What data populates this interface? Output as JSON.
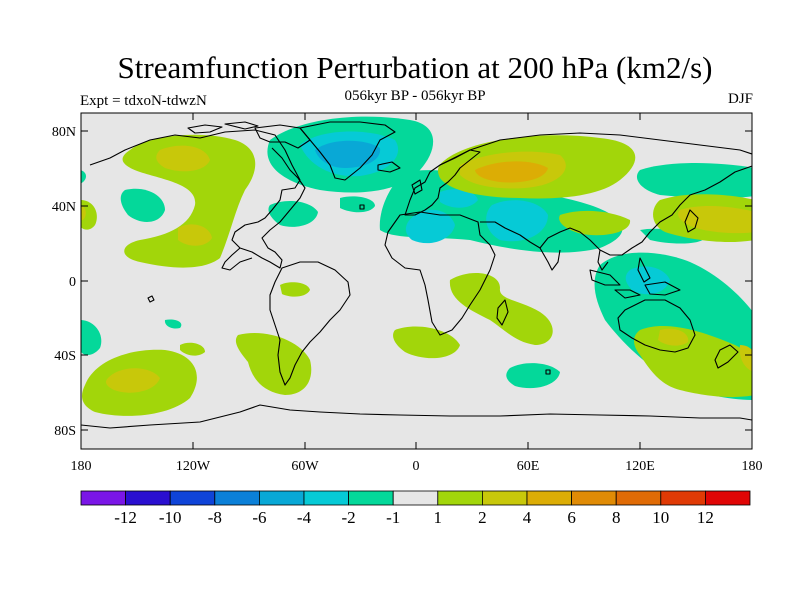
{
  "title": "Streamfunction Perturbation at 200 hPa (km2/s)",
  "subtitle": "056kyr BP - 056kyr BP",
  "left_label": "Expt = tdxoN-tdwzN",
  "right_label": "DJF",
  "lat_ticks": [
    "80N",
    "40N",
    "0",
    "40S",
    "80S"
  ],
  "lon_ticks": [
    "180",
    "120W",
    "60W",
    "0",
    "60E",
    "120E",
    "180"
  ],
  "colorbar": {
    "colors": [
      "#7a16e6",
      "#2a0fd0",
      "#0f44d8",
      "#0b80d8",
      "#09a8d6",
      "#06cad6",
      "#04d89a",
      "#e6e6e6",
      "#a2d60a",
      "#c8c80a",
      "#dcad05",
      "#e08b05",
      "#e06b05",
      "#e03a05",
      "#e00505"
    ],
    "labels": [
      "-12",
      "-10",
      "-8",
      "-6",
      "-4",
      "-2",
      "-1",
      "1",
      "2",
      "4",
      "6",
      "8",
      "10",
      "12"
    ]
  }
}
